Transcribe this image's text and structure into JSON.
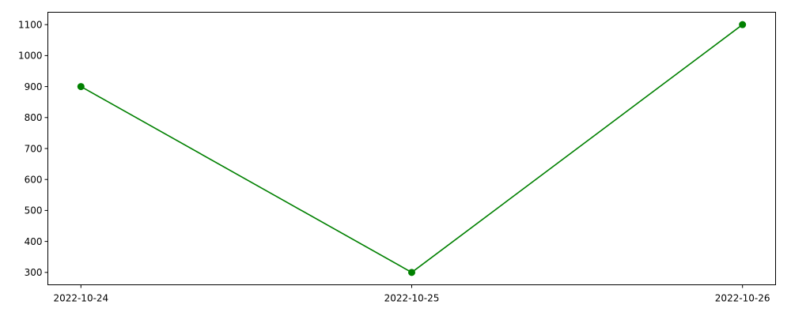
{
  "chart_data": {
    "type": "line",
    "title": "",
    "xlabel": "",
    "ylabel": "",
    "x": [
      "2022-10-24",
      "2022-10-25",
      "2022-10-26"
    ],
    "series": [
      {
        "values": [
          900,
          300,
          1100
        ],
        "color": "#008000",
        "marker": "circle"
      }
    ],
    "xticks": [
      "2022-10-24",
      "2022-10-25",
      "2022-10-26"
    ],
    "yticks": [
      300,
      400,
      500,
      600,
      700,
      800,
      900,
      1000,
      1100
    ],
    "ylim": [
      260,
      1140
    ],
    "grid": false,
    "legend": "none"
  }
}
